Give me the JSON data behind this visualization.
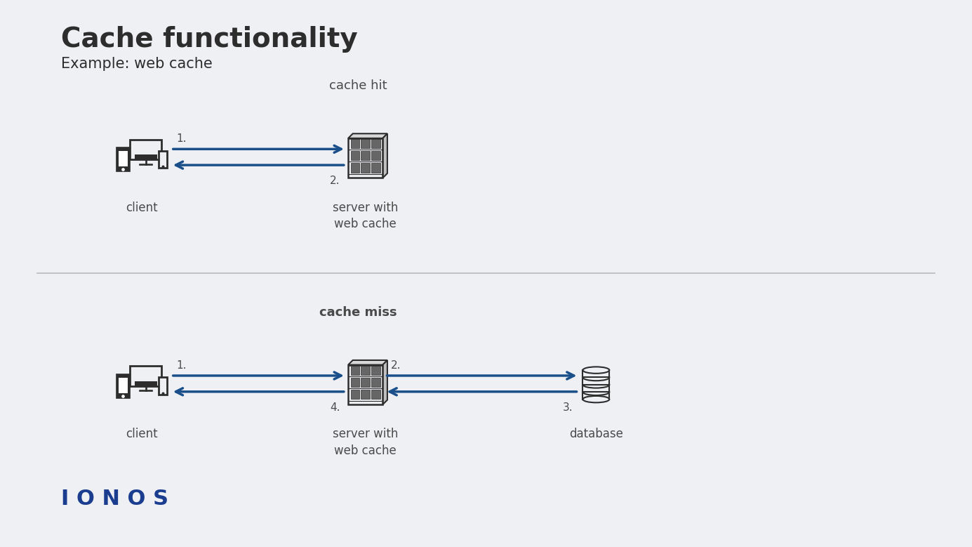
{
  "bg_color": "#eef0f4",
  "title": "Cache functionality",
  "subtitle": "Example: web cache",
  "title_color": "#2d2d2d",
  "title_fontsize": 28,
  "subtitle_fontsize": 15,
  "arrow_color": "#1a4f8a",
  "icon_color": "#2d2d2d",
  "label_color": "#4a4a4a",
  "divider_color": "#bbbbbb",
  "ionos_color": "#1a3d8f",
  "top_label": "cache hit",
  "bottom_label": "cache miss",
  "top_client_label": "client",
  "top_server_label": "server with\nweb cache",
  "bottom_client_label": "client",
  "bottom_server_label": "server with\nweb cache",
  "bottom_db_label": "database",
  "top_arrow1": "1.",
  "top_arrow2": "2.",
  "bottom_arrow1": "1.",
  "bottom_arrow2": "2.",
  "bottom_arrow3": "3.",
  "bottom_arrow4": "4."
}
